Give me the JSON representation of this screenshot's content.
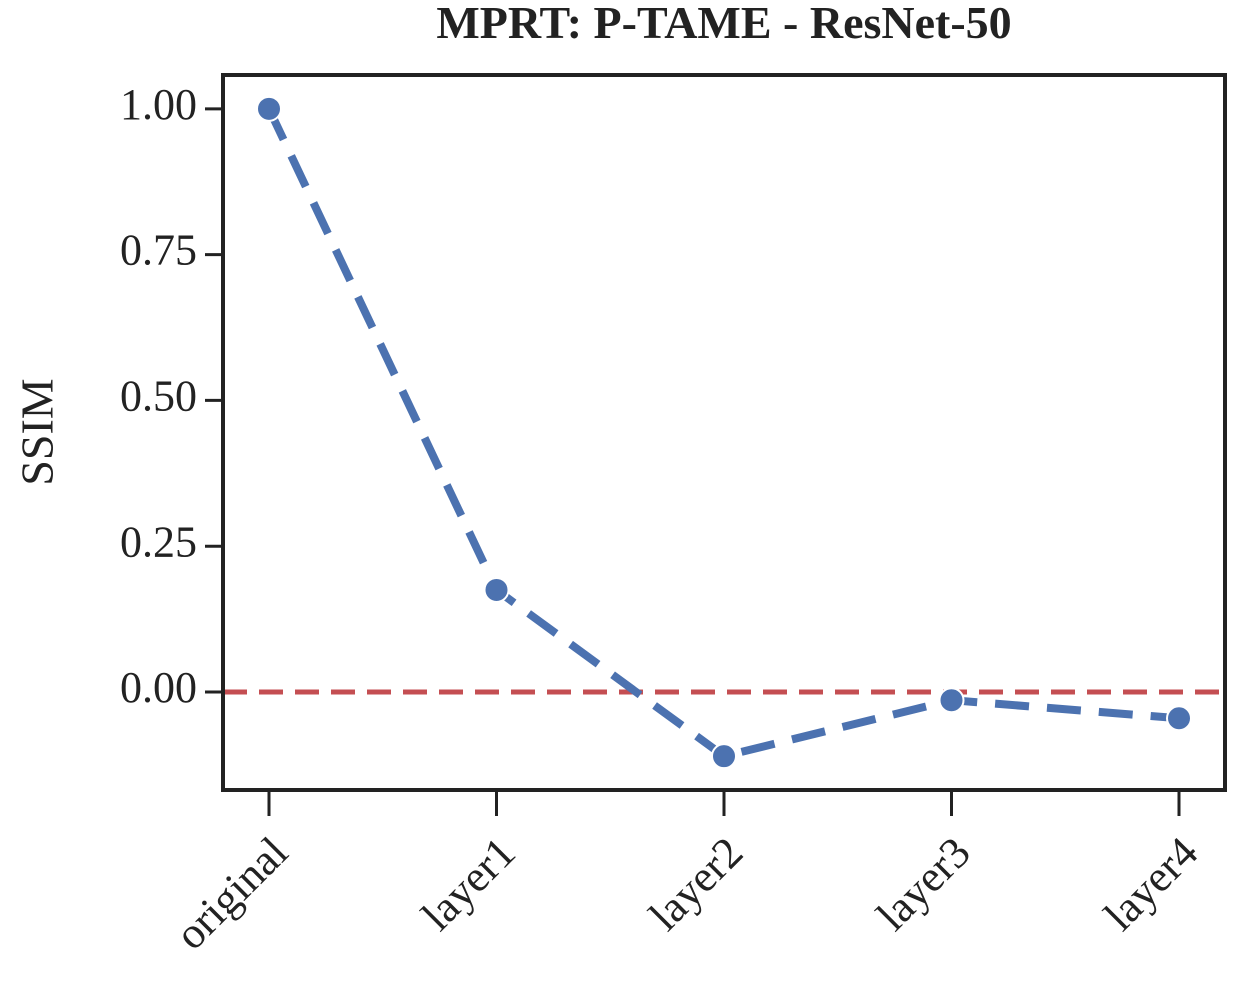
{
  "chart_data": {
    "type": "line",
    "title": "MPRT: P-TAME - ResNet-50",
    "y_label": "SSIM",
    "categories": [
      "original",
      "layer1",
      "layer2",
      "layer3",
      "layer4"
    ],
    "series": [
      {
        "name": "SSIM",
        "color": "#4c72b0",
        "values": [
          1.0,
          0.175,
          -0.11,
          -0.014,
          -0.045
        ]
      }
    ],
    "reference_line": {
      "value": 0,
      "color": "#c44e52"
    },
    "ylim": [
      -0.168,
      1.058
    ],
    "yticks": [
      {
        "value": 0,
        "label": "0.00"
      },
      {
        "value": 0.25,
        "label": "0.25"
      },
      {
        "value": 0.5,
        "label": "0.50"
      },
      {
        "value": 0.75,
        "label": "0.75"
      },
      {
        "value": 1,
        "label": "1.00"
      }
    ],
    "grid": false
  }
}
